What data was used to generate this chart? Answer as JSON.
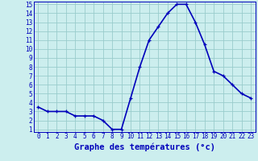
{
  "hours": [
    0,
    1,
    2,
    3,
    4,
    5,
    6,
    7,
    8,
    9,
    10,
    11,
    12,
    13,
    14,
    15,
    16,
    17,
    18,
    19,
    20,
    21,
    22,
    23
  ],
  "temps": [
    3.5,
    3.0,
    3.0,
    3.0,
    2.5,
    2.5,
    2.5,
    2.0,
    1.0,
    1.0,
    4.5,
    8.0,
    11.0,
    12.5,
    14.0,
    15.0,
    15.0,
    13.0,
    10.5,
    7.5,
    7.0,
    6.0,
    5.0,
    4.5
  ],
  "line_color": "#0000bb",
  "marker": "+",
  "bg_color": "#cceeee",
  "grid_color": "#99cccc",
  "xlabel": "Graphe des températures (°c)",
  "ylim_min": 1,
  "ylim_max": 15,
  "xlim_min": 0,
  "xlim_max": 23,
  "yticks": [
    1,
    2,
    3,
    4,
    5,
    6,
    7,
    8,
    9,
    10,
    11,
    12,
    13,
    14,
    15
  ],
  "xticks": [
    0,
    1,
    2,
    3,
    4,
    5,
    6,
    7,
    8,
    9,
    10,
    11,
    12,
    13,
    14,
    15,
    16,
    17,
    18,
    19,
    20,
    21,
    22,
    23
  ],
  "tick_color": "#0000bb",
  "label_color": "#0000bb",
  "xlabel_fontsize": 7.5,
  "tick_fontsize": 5.5,
  "linewidth": 1.2,
  "markersize": 3.5,
  "markeredgewidth": 0.9
}
